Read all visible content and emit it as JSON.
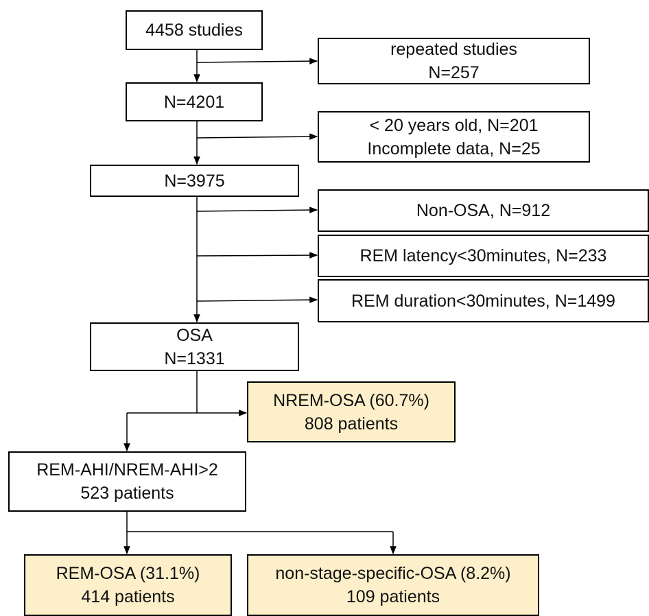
{
  "nodes": [
    {
      "lines": [
        "4458 studies"
      ]
    },
    {
      "lines": [
        "repeated studies",
        "N=257"
      ]
    },
    {
      "lines": [
        "N=4201"
      ]
    },
    {
      "lines": [
        "< 20 years old, N=201",
        "Incomplete data, N=25"
      ]
    },
    {
      "lines": [
        "N=3975"
      ]
    },
    {
      "lines": [
        "Non-OSA, N=912"
      ]
    },
    {
      "lines": [
        "REM latency<30minutes, N=233"
      ]
    },
    {
      "lines": [
        "REM duration<30minutes, N=1499"
      ]
    },
    {
      "lines": [
        "OSA",
        "N=1331"
      ]
    },
    {
      "lines": [
        "NREM-OSA (60.7%)",
        "808 patients"
      ]
    },
    {
      "lines": [
        "REM-AHI/NREM-AHI>2",
        "523 patients"
      ]
    },
    {
      "lines": [
        "REM-OSA (31.1%)",
        "414 patients"
      ]
    },
    {
      "lines": [
        "non-stage-specific-OSA (8.2%)",
        "109 patients"
      ]
    }
  ]
}
